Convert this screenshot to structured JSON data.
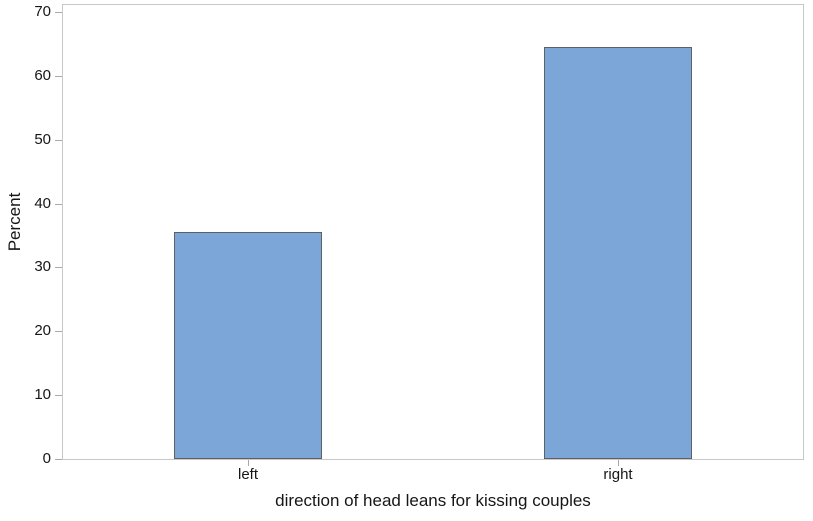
{
  "chart_data": {
    "type": "bar",
    "title": "",
    "categories": [
      "left",
      "right"
    ],
    "values": [
      35.5,
      64.5
    ],
    "series": [
      {
        "name": "Percent",
        "values": [
          35.5,
          64.5
        ]
      }
    ],
    "xlabel": "direction of head leans for kissing couples",
    "ylabel": "Percent",
    "ylim": [
      0,
      70
    ],
    "yticks": [
      "0",
      "10",
      "20",
      "30",
      "40",
      "50",
      "60",
      "70"
    ],
    "ytick_values": [
      0,
      10,
      20,
      30,
      40,
      50,
      60,
      70
    ],
    "grid": false,
    "legend": false,
    "plot_border": true
  },
  "style": {
    "background": "#FFFFFF",
    "bar_fill": "#7CA6D8",
    "bar_border": "#5D6064",
    "plot_border_color": "#C8C8C8",
    "tick_color": "#A8A8A8",
    "text_color": "#161616"
  }
}
